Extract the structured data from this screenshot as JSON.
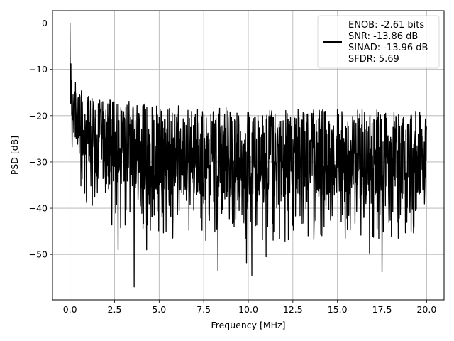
{
  "chart_data": {
    "type": "line",
    "title": "",
    "xlabel": "Frequency [MHz]",
    "ylabel": "PSD [dB]",
    "xlim": [
      -0.98,
      20.98
    ],
    "ylim": [
      -59.8,
      2.7
    ],
    "xticks": [
      0.0,
      2.5,
      5.0,
      7.5,
      10.0,
      12.5,
      15.0,
      17.5,
      20.0
    ],
    "xtick_labels": [
      "0.0",
      "2.5",
      "5.0",
      "7.5",
      "10.0",
      "12.5",
      "15.0",
      "17.5",
      "20.0"
    ],
    "yticks": [
      0,
      -10,
      -20,
      -30,
      -40,
      -50
    ],
    "ytick_labels": [
      "0",
      "−10",
      "−20",
      "−30",
      "−40",
      "−50"
    ],
    "grid": true,
    "legend_position": "top-right",
    "series": [
      {
        "name": "ENOB: -2.61 bits\nSNR: -13.86 dB\nSINAD: -13.96 dB\nSFDR: 5.69",
        "color": "#000000",
        "x_range": [
          0.0,
          20.0
        ],
        "peak": [
          0.0,
          0.0
        ],
        "approx_envelope": {
          "x": [
            0.0,
            0.05,
            0.2,
            0.5,
            1.0,
            2.5,
            5.0,
            10.0,
            15.0,
            20.0
          ],
          "upper": [
            0.0,
            -6.0,
            -11.0,
            -14.0,
            -15.5,
            -16.5,
            -17.5,
            -18.5,
            -18.5,
            -19.0
          ],
          "lower": [
            -26.0,
            -26.0,
            -30.0,
            -35.0,
            -40.0,
            -45.0,
            -47.0,
            -48.0,
            -47.0,
            -47.0
          ]
        },
        "notable_minima": [
          [
            3.6,
            -57.0
          ],
          [
            10.2,
            -54.5
          ],
          [
            8.3,
            -53.5
          ],
          [
            17.5,
            -53.8
          ],
          [
            2.7,
            -49.0
          ],
          [
            4.3,
            -49.0
          ],
          [
            9.9,
            -51.8
          ],
          [
            11.0,
            -50.5
          ],
          [
            16.8,
            -49.7
          ]
        ]
      }
    ],
    "legend_lines": [
      "ENOB: -2.61 bits",
      "SNR: -13.86 dB",
      "SINAD: -13.96 dB",
      "SFDR: 5.69"
    ]
  }
}
